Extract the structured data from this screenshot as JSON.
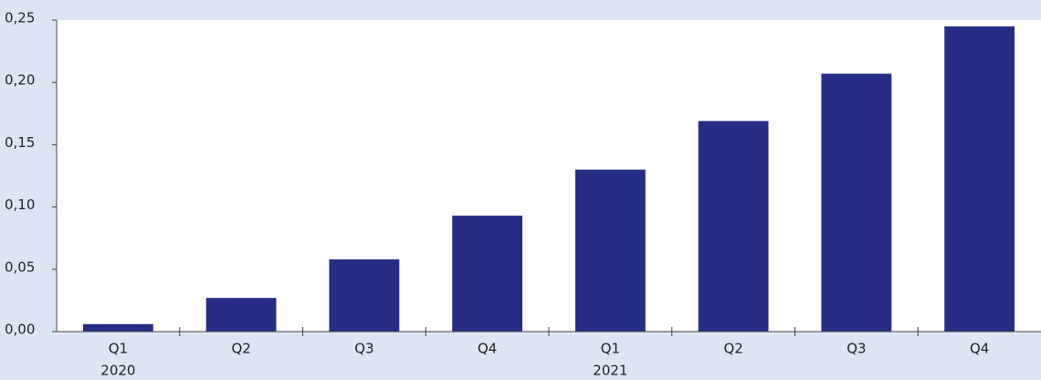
{
  "chart_data": {
    "type": "bar",
    "categories": [
      "Q1",
      "Q2",
      "Q3",
      "Q4",
      "Q1",
      "Q2",
      "Q3",
      "Q4"
    ],
    "category_groups": [
      "2020",
      "2021"
    ],
    "values": [
      0.006,
      0.027,
      0.058,
      0.093,
      0.13,
      0.169,
      0.207,
      0.245
    ],
    "color": "#252d84",
    "ylim": [
      0,
      0.25
    ],
    "yticks": [
      {
        "value": 0,
        "label": "0,00"
      },
      {
        "value": 0.05,
        "label": "0,05"
      },
      {
        "value": 0.1,
        "label": "0,10"
      },
      {
        "value": 0.15,
        "label": "0,15"
      },
      {
        "value": 0.2,
        "label": "0,20"
      },
      {
        "value": 0.25,
        "label": "0,25"
      }
    ],
    "grid": false
  }
}
